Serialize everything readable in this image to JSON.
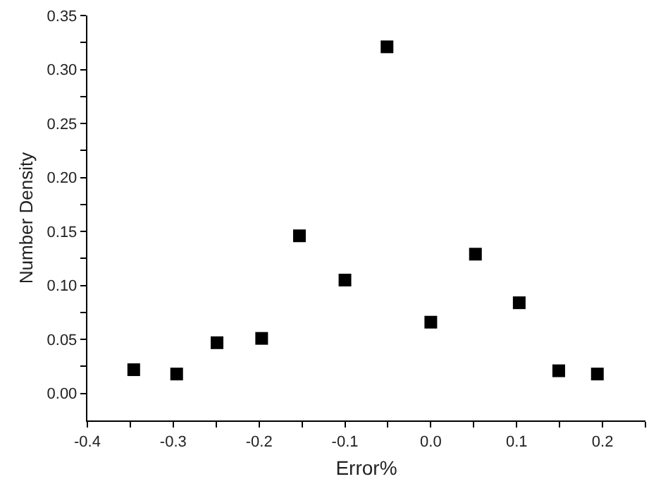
{
  "chart_data": {
    "type": "scatter",
    "xlabel": "Error%",
    "ylabel": "Number Density",
    "x": [
      -0.346,
      -0.296,
      -0.249,
      -0.197,
      -0.153,
      -0.1,
      -0.051,
      0.0,
      0.052,
      0.103,
      0.149,
      0.194
    ],
    "series": [
      {
        "color": "#000000",
        "values": [
          0.022,
          0.018,
          0.047,
          0.051,
          0.146,
          0.105,
          0.321,
          0.066,
          0.129,
          0.084,
          0.021,
          0.018
        ]
      }
    ],
    "marker": "square",
    "xlim": [
      -0.4,
      0.25
    ],
    "xticks": [
      {
        "value": -0.4,
        "label": "-0.4"
      },
      {
        "value": -0.35,
        "label": null
      },
      {
        "value": -0.3,
        "label": "-0.3"
      },
      {
        "value": -0.25,
        "label": null
      },
      {
        "value": -0.2,
        "label": "-0.2"
      },
      {
        "value": -0.15,
        "label": null
      },
      {
        "value": -0.1,
        "label": "-0.1"
      },
      {
        "value": -0.05,
        "label": null
      },
      {
        "value": 0.0,
        "label": "0.0"
      },
      {
        "value": 0.05,
        "label": null
      },
      {
        "value": 0.1,
        "label": "0.1"
      },
      {
        "value": 0.15,
        "label": null
      },
      {
        "value": 0.2,
        "label": "0.2"
      },
      {
        "value": 0.25,
        "label": null
      }
    ],
    "ylim": [
      -0.025,
      0.35
    ],
    "yticks": [
      {
        "value": 0.0,
        "label": "0.00"
      },
      {
        "value": 0.025,
        "label": null
      },
      {
        "value": 0.05,
        "label": "0.05"
      },
      {
        "value": 0.075,
        "label": null
      },
      {
        "value": 0.1,
        "label": "0.10"
      },
      {
        "value": 0.125,
        "label": null
      },
      {
        "value": 0.15,
        "label": "0.15"
      },
      {
        "value": 0.175,
        "label": null
      },
      {
        "value": 0.2,
        "label": "0.20"
      },
      {
        "value": 0.225,
        "label": null
      },
      {
        "value": 0.25,
        "label": "0.25"
      },
      {
        "value": 0.275,
        "label": null
      },
      {
        "value": 0.3,
        "label": "0.30"
      },
      {
        "value": 0.325,
        "label": null
      },
      {
        "value": 0.35,
        "label": "0.35"
      }
    ]
  }
}
